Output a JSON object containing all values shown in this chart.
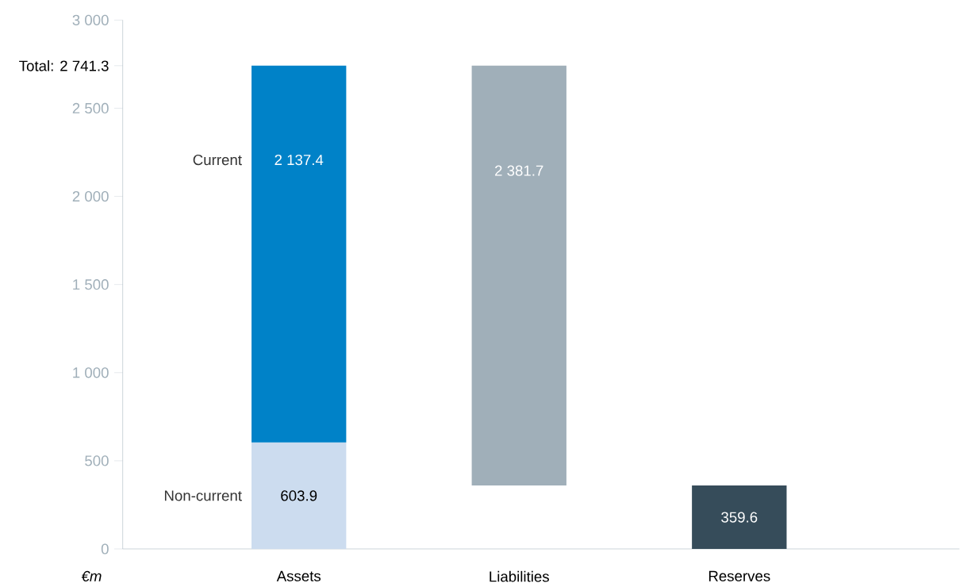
{
  "chart_data": {
    "type": "bar",
    "stacked": true,
    "ylabel": "€m",
    "categories": [
      "Assets",
      "Liabilities",
      "Reserves"
    ],
    "ylim": [
      0,
      3000
    ],
    "yticks": [
      {
        "value": 0,
        "label": "0"
      },
      {
        "value": 500,
        "label": "500"
      },
      {
        "value": 1000,
        "label": "1 000"
      },
      {
        "value": 1500,
        "label": "1 500"
      },
      {
        "value": 2000,
        "label": "2 000"
      },
      {
        "value": 2500,
        "label": "2 500"
      },
      {
        "value": 2741.3,
        "label": "Total: 2 741.3"
      },
      {
        "value": 3000,
        "label": "3 000"
      }
    ],
    "series": [
      {
        "name": "Non-current",
        "color": "#ccdcef",
        "values": [
          603.9,
          null,
          null
        ],
        "value_labels": [
          "603.9",
          null,
          null
        ]
      },
      {
        "name": "Current",
        "color": "#0082c8",
        "values": [
          2137.4,
          null,
          null
        ],
        "value_labels": [
          "2 137.4",
          null,
          null
        ]
      },
      {
        "color": "#a0afb9",
        "values": [
          null,
          2381.7,
          null
        ],
        "base": [
          null,
          359.6,
          null
        ],
        "value_labels": [
          null,
          "2 381.7",
          null
        ]
      },
      {
        "color": "#364c5a",
        "values": [
          null,
          null,
          359.6
        ],
        "value_labels": [
          null,
          null,
          "359.6"
        ]
      }
    ]
  }
}
